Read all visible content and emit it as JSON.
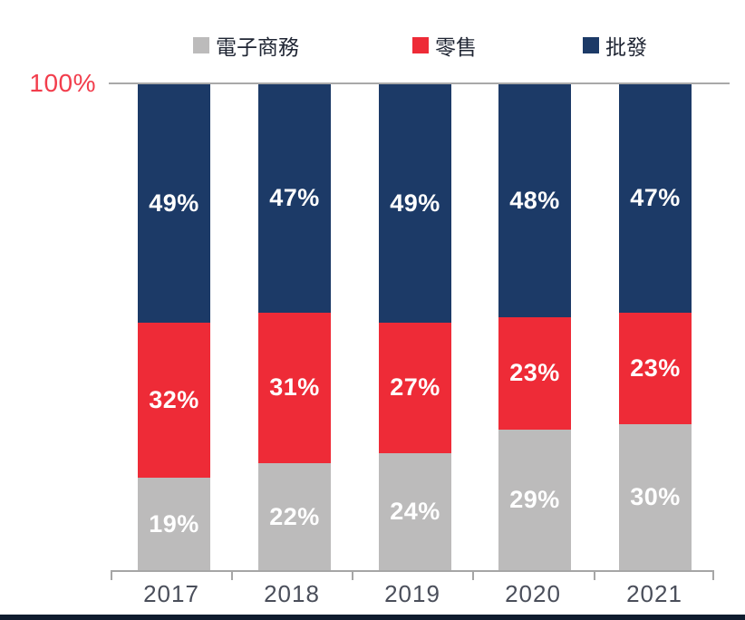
{
  "chart_data": {
    "type": "bar",
    "subtype": "stacked-100-percent",
    "title": "",
    "xlabel": "",
    "ylabel": "",
    "ylim": [
      0,
      100
    ],
    "value_suffix": "%",
    "categories": [
      "2017",
      "2018",
      "2019",
      "2020",
      "2021"
    ],
    "series": [
      {
        "name": "電子商務",
        "color": "#bcbbbb",
        "label_color": "#ffffff",
        "values": [
          19,
          22,
          24,
          29,
          30
        ]
      },
      {
        "name": "零售",
        "color": "#ee2b37",
        "label_color": "#ffffff",
        "values": [
          32,
          31,
          27,
          23,
          23
        ]
      },
      {
        "name": "批發",
        "color": "#1c3a67",
        "label_color": "#ffffff",
        "values": [
          49,
          47,
          49,
          48,
          47
        ]
      }
    ],
    "legend_position": "top",
    "y_axis": {
      "top_label": "100%",
      "top_label_color": "#f23d4c"
    },
    "grid": {
      "top_line_color": "#a9a9a9",
      "axis_color": "#a6a6a6"
    }
  },
  "footer": {
    "strip_color": "#101c2e"
  }
}
